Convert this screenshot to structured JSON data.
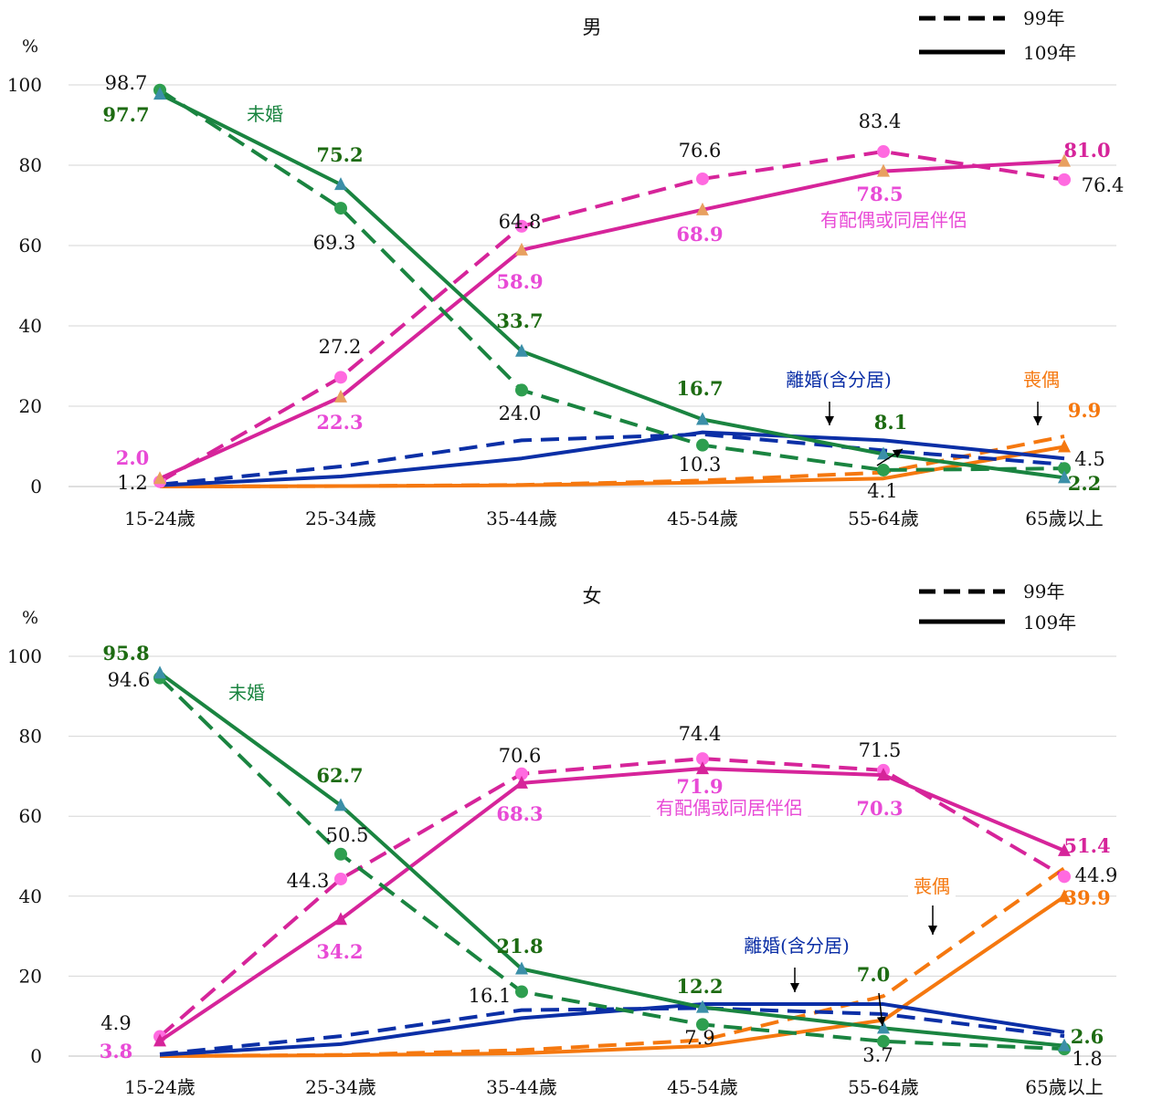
{
  "legend": {
    "dashed": "99年",
    "solid": "109年"
  },
  "colors": {
    "single": "#1a8440",
    "married": "#d6249a",
    "divorced": "#0b2fa6",
    "widowed": "#f5780f",
    "married_label": "#e84ad6",
    "single_label_dark": "#1d6b12",
    "text": "#111111",
    "grid": "#d6d6d6"
  },
  "chart_data": [
    {
      "type": "line",
      "title": "男",
      "ylabel": "%",
      "ylim": [
        0,
        100
      ],
      "yticks": [
        0,
        20,
        40,
        60,
        80,
        100
      ],
      "categories": [
        "15-24歲",
        "25-34歲",
        "35-44歲",
        "45-54歲",
        "55-64歲",
        "65歲以上"
      ],
      "series": [
        {
          "name": "未婚",
          "year": "99年",
          "values": [
            98.7,
            69.3,
            24.0,
            10.3,
            4.1,
            4.5
          ]
        },
        {
          "name": "未婚",
          "year": "109年",
          "values": [
            97.7,
            75.2,
            33.7,
            16.7,
            8.1,
            2.2
          ]
        },
        {
          "name": "有配偶或同居伴侶",
          "year": "99年",
          "values": [
            1.2,
            27.2,
            64.8,
            76.6,
            83.4,
            76.4
          ]
        },
        {
          "name": "有配偶或同居伴侶",
          "year": "109年",
          "values": [
            2.0,
            22.3,
            58.9,
            68.9,
            78.5,
            81.0
          ]
        },
        {
          "name": "離婚(含分居)",
          "year": "99年",
          "values": [
            0.5,
            5.0,
            11.5,
            13.0,
            9.0,
            5.5
          ]
        },
        {
          "name": "離婚(含分居)",
          "year": "109年",
          "values": [
            0.3,
            2.5,
            7.0,
            13.5,
            11.5,
            7.0
          ]
        },
        {
          "name": "喪偶",
          "year": "99年",
          "values": [
            0.0,
            0.1,
            0.4,
            1.5,
            3.5,
            12.5
          ]
        },
        {
          "name": "喪偶",
          "year": "109年",
          "values": [
            0.0,
            0.1,
            0.3,
            1.0,
            2.0,
            9.9
          ]
        }
      ],
      "data_labels": [
        {
          "text": "98.7"
        },
        {
          "text": "97.7"
        },
        {
          "text": "未婚"
        },
        {
          "text": "75.2"
        },
        {
          "text": "69.3"
        },
        {
          "text": "64.8"
        },
        {
          "text": "76.6"
        },
        {
          "text": "83.4"
        },
        {
          "text": "81.0"
        },
        {
          "text": "76.4"
        },
        {
          "text": "78.5"
        },
        {
          "text": "有配偶或同居伴侶"
        },
        {
          "text": "58.9"
        },
        {
          "text": "68.9"
        },
        {
          "text": "33.7"
        },
        {
          "text": "27.2"
        },
        {
          "text": "22.3"
        },
        {
          "text": "24.0"
        },
        {
          "text": "16.7"
        },
        {
          "text": "10.3"
        },
        {
          "text": "2.0"
        },
        {
          "text": "1.2"
        },
        {
          "text": "8.1"
        },
        {
          "text": "4.1"
        },
        {
          "text": "4.5"
        },
        {
          "text": "2.2"
        },
        {
          "text": "9.9"
        },
        {
          "text": "離婚(含分居)"
        },
        {
          "text": "喪偶"
        }
      ]
    },
    {
      "type": "line",
      "title": "女",
      "ylabel": "%",
      "ylim": [
        0,
        100
      ],
      "yticks": [
        0,
        20,
        40,
        60,
        80,
        100
      ],
      "categories": [
        "15-24歲",
        "25-34歲",
        "35-44歲",
        "45-54歲",
        "55-64歲",
        "65歲以上"
      ],
      "series": [
        {
          "name": "未婚",
          "year": "99年",
          "values": [
            94.6,
            50.5,
            16.1,
            7.9,
            3.7,
            1.8
          ]
        },
        {
          "name": "未婚",
          "year": "109年",
          "values": [
            95.8,
            62.7,
            21.8,
            12.2,
            7.0,
            2.6
          ]
        },
        {
          "name": "有配偶或同居伴侶",
          "year": "99年",
          "values": [
            4.9,
            44.3,
            70.6,
            74.4,
            71.5,
            44.9
          ]
        },
        {
          "name": "有配偶或同居伴侶",
          "year": "109年",
          "values": [
            3.8,
            34.2,
            68.3,
            71.9,
            70.3,
            51.4
          ]
        },
        {
          "name": "離婚(含分居)",
          "year": "99年",
          "values": [
            0.5,
            5.0,
            11.5,
            12.0,
            10.5,
            5.0
          ]
        },
        {
          "name": "離婚(含分居)",
          "year": "109年",
          "values": [
            0.3,
            3.0,
            9.5,
            13.0,
            13.0,
            6.0
          ]
        },
        {
          "name": "喪偶",
          "year": "99年",
          "values": [
            0.0,
            0.3,
            1.5,
            4.0,
            15.0,
            47.0
          ]
        },
        {
          "name": "喪偶",
          "year": "109年",
          "values": [
            0.0,
            0.2,
            0.7,
            2.5,
            9.0,
            39.9
          ]
        }
      ],
      "data_labels": [
        {
          "text": "95.8"
        },
        {
          "text": "94.6"
        },
        {
          "text": "未婚"
        },
        {
          "text": "62.7"
        },
        {
          "text": "50.5"
        },
        {
          "text": "70.6"
        },
        {
          "text": "74.4"
        },
        {
          "text": "71.5"
        },
        {
          "text": "44.3"
        },
        {
          "text": "68.3"
        },
        {
          "text": "71.9"
        },
        {
          "text": "有配偶或同居伴侶"
        },
        {
          "text": "70.3"
        },
        {
          "text": "51.4"
        },
        {
          "text": "44.9"
        },
        {
          "text": "34.2"
        },
        {
          "text": "39.9"
        },
        {
          "text": "21.8"
        },
        {
          "text": "16.1"
        },
        {
          "text": "12.2"
        },
        {
          "text": "7.9"
        },
        {
          "text": "7.0"
        },
        {
          "text": "3.7"
        },
        {
          "text": "2.6"
        },
        {
          "text": "1.8"
        },
        {
          "text": "4.9"
        },
        {
          "text": "3.8"
        },
        {
          "text": "離婚(含分居)"
        },
        {
          "text": "喪偶"
        }
      ]
    }
  ]
}
